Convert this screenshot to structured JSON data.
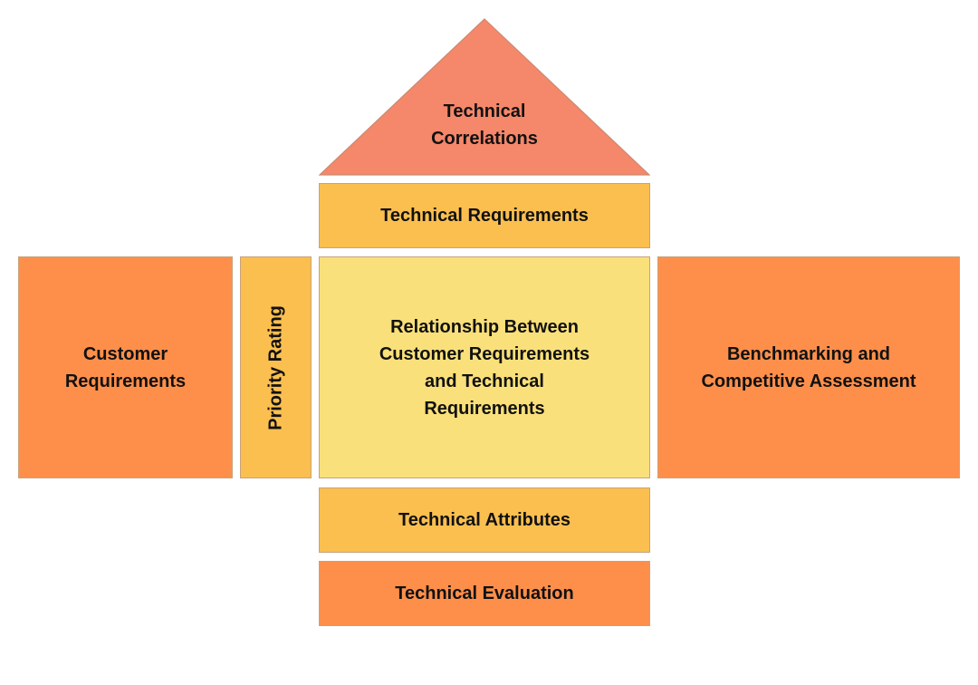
{
  "colors": {
    "roof": "#f5876a",
    "band": "#fbbf4f",
    "center": "#fae07a",
    "side": "#fd8f4b",
    "evaluation": "#fd8f4b"
  },
  "diagram": {
    "roof": {
      "line1": "Technical",
      "line2": "Correlations"
    },
    "technical_requirements": "Technical Requirements",
    "customer_requirements": {
      "line1": "Customer",
      "line2": "Requirements"
    },
    "priority_rating": "Priority Rating",
    "relationship": {
      "line1": "Relationship Between",
      "line2": "Customer Requirements",
      "line3": "and Technical",
      "line4": "Requirements"
    },
    "benchmarking": {
      "line1": "Benchmarking and",
      "line2": "Competitive Assessment"
    },
    "technical_attributes": "Technical Attributes",
    "technical_evaluation": "Technical Evaluation"
  }
}
